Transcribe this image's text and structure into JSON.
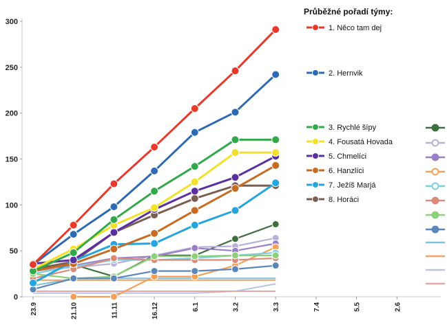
{
  "chart_data": {
    "type": "line",
    "legend_title": "Průběžné pořadí týmy:",
    "ylim": [
      0,
      300
    ],
    "yticks": [
      0,
      50,
      100,
      150,
      200,
      250,
      300
    ],
    "categories": [
      "23.9",
      "21.10",
      "11.11",
      "16.12",
      "6.1",
      "3.2",
      "3.3",
      "7.4",
      "5.5",
      "2.6"
    ],
    "grid": false,
    "legend_position": "right",
    "main_series": [
      {
        "label": "1.   Něco tam dej",
        "color": "#e8392a",
        "values": [
          35,
          78,
          123,
          163,
          205,
          246,
          291
        ]
      },
      {
        "label": "2.   Hernvik",
        "color": "#2e6ab3",
        "values": [
          35,
          68,
          98,
          137,
          179,
          201,
          242
        ]
      },
      {
        "label": "3.   Rychlé šípy",
        "color": "#33a84a",
        "values": [
          28,
          48,
          84,
          115,
          142,
          171,
          171
        ]
      },
      {
        "label": "4.   Fousatá Hovada",
        "color": "#f2e128",
        "values": [
          30,
          52,
          78,
          97,
          125,
          157,
          157
        ]
      },
      {
        "label": "5.   Chmelíci",
        "color": "#5a2fa0",
        "values": [
          36,
          40,
          70,
          95,
          115,
          130,
          153
        ]
      },
      {
        "label": "6.   Hanzlíci",
        "color": "#c76b22",
        "values": [
          28,
          36,
          52,
          69,
          94,
          118,
          143
        ]
      },
      {
        "label": "7.   Ježíš Marjá",
        "color": "#26a4dd",
        "values": [
          15,
          39,
          57,
          58,
          78,
          94,
          124
        ]
      },
      {
        "label": "8.   Horáci",
        "color": "#7a5e50",
        "values": [
          30,
          38,
          70,
          89,
          107,
          121,
          121
        ]
      }
    ],
    "minor_series": [
      {
        "color": "#3f6e3f",
        "values": [
          30,
          35,
          22,
          45,
          45,
          63,
          79
        ]
      },
      {
        "color": "#b8b0d8",
        "values": [
          28,
          32,
          36,
          45,
          54,
          55,
          64
        ]
      },
      {
        "color": "#9b7fc6",
        "values": [
          30,
          34,
          42,
          44,
          53,
          50,
          58
        ]
      },
      {
        "color": "#f3a159",
        "values": [
          null,
          0,
          0,
          22,
          22,
          34,
          54
        ]
      },
      {
        "color": "#7fcfe0",
        "values": [
          25,
          33,
          40,
          40,
          42,
          45,
          48
        ]
      },
      {
        "color": "#d98b7a",
        "values": [
          20,
          30,
          42,
          40,
          40,
          40,
          42
        ]
      },
      {
        "color": "#8fce7a",
        "values": [
          25,
          20,
          22,
          44,
          44,
          45,
          45
        ]
      },
      {
        "color": "#5a86b8",
        "values": [
          8,
          20,
          20,
          28,
          28,
          30,
          34
        ]
      }
    ],
    "flat_series": [
      {
        "color": "#7fbfdf",
        "values": [
          12,
          20,
          20,
          20,
          20,
          20,
          20
        ]
      },
      {
        "color": "#f2a468",
        "values": [
          18,
          18,
          18,
          18,
          18,
          18,
          18
        ]
      },
      {
        "color": "#b8c4e2",
        "values": [
          4,
          4,
          4,
          4,
          4,
          6,
          14
        ]
      },
      {
        "color": "#e5a8a4",
        "values": [
          6,
          6,
          6,
          6,
          6,
          6,
          6
        ]
      }
    ]
  }
}
